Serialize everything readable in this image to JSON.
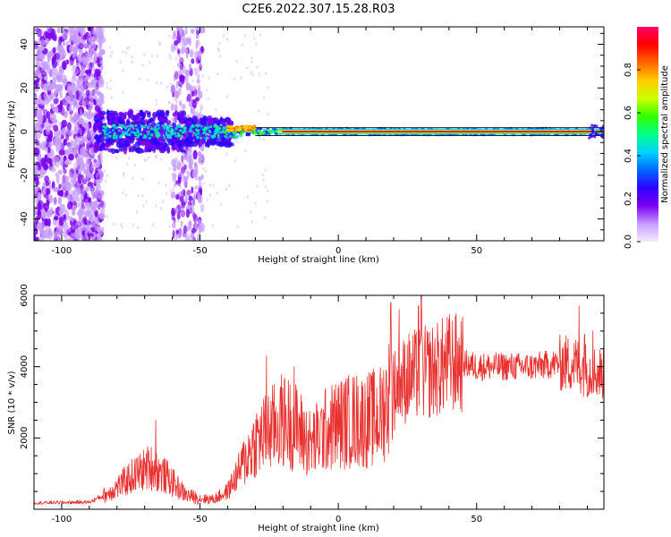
{
  "title": "C2E6.2022.307.15.28.R03",
  "colors": {
    "snr_line": "#e8312f",
    "background": "#ffffff",
    "axis": "#000000"
  },
  "chart_data": [
    {
      "type": "heatmap",
      "xlabel": "Height of straight line (km)",
      "ylabel": "Frequency (Hz)",
      "xlim": [
        -110,
        96
      ],
      "ylim": [
        -50,
        48
      ],
      "x_ticks": [
        -100,
        -50,
        0,
        50
      ],
      "y_ticks": [
        -40,
        -20,
        0,
        20,
        40
      ],
      "colorbar": {
        "label": "Normalized spectral amplitude",
        "range": [
          0,
          1
        ],
        "ticks": [
          "0.0",
          "0.2",
          "0.4",
          "0.6",
          "0.8"
        ],
        "colormap": [
          "#f5ecff",
          "#c79cff",
          "#7a00f0",
          "#2f00ff",
          "#0066ff",
          "#00d5ff",
          "#00ff88",
          "#33ff00",
          "#ccff00",
          "#ffcc00",
          "#ff6600",
          "#ff0000",
          "#ff0066"
        ]
      },
      "ridge": {
        "description_values": "main signal centred near 0 Hz",
        "x_range": [
          -88,
          96
        ],
        "frequency_center": 0
      }
    },
    {
      "type": "line",
      "xlabel": "Height of straight line (km)",
      "ylabel": "SNR (10 * v/v)",
      "xlim": [
        -110,
        96
      ],
      "ylim": [
        0,
        6000
      ],
      "x_ticks": [
        -100,
        -50,
        0,
        50
      ],
      "y_ticks": [
        2000,
        4000,
        6000
      ],
      "series": [
        {
          "color": "#e8312f",
          "profile_x": [
            -110,
            -90,
            -83,
            -75,
            -68,
            -62,
            -55,
            -50,
            -45,
            -40,
            -35,
            -30,
            -25,
            -20,
            -15,
            -10,
            -5,
            0,
            5,
            10,
            15,
            19,
            25,
            30,
            35,
            40,
            45,
            50,
            60,
            70,
            80,
            85,
            90,
            96
          ],
          "profile_y": [
            180,
            200,
            450,
            900,
            1200,
            900,
            400,
            300,
            280,
            500,
            1200,
            1900,
            2200,
            2500,
            2300,
            1800,
            2200,
            2400,
            2500,
            2500,
            2600,
            3300,
            3700,
            3800,
            3900,
            4100,
            4100,
            4000,
            4000,
            4000,
            4100,
            4100,
            3900,
            3800
          ],
          "peaks_x": [
            -66,
            -26,
            -16,
            19,
            22,
            29,
            30,
            87,
            89,
            92
          ],
          "peaks_y": [
            2500,
            4300,
            4000,
            5800,
            5600,
            5700,
            5900,
            5700,
            4900,
            5000
          ]
        }
      ]
    }
  ]
}
